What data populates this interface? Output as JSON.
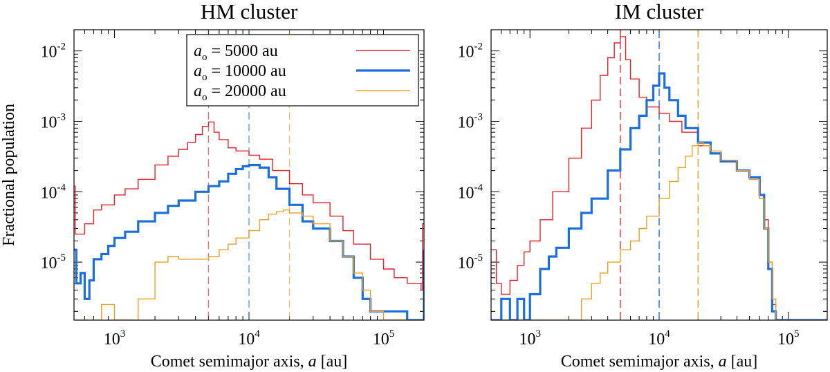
{
  "chart_data": [
    {
      "type": "line",
      "title": "HM cluster",
      "xlabel": "Comet semimajor axis, a [au]",
      "ylabel": "Fractional population",
      "xscale": "log",
      "yscale": "log",
      "xlim": [
        500,
        200000
      ],
      "ylim": [
        1.5e-06,
        0.02
      ],
      "xticks": [
        {
          "base": "10",
          "exp": "3"
        },
        {
          "base": "10",
          "exp": "4"
        },
        {
          "base": "10",
          "exp": "5"
        }
      ],
      "yticks": [
        {
          "base": "10",
          "exp": "-5"
        },
        {
          "base": "10",
          "exp": "-4"
        },
        {
          "base": "10",
          "exp": "-3"
        },
        {
          "base": "10",
          "exp": "-2"
        }
      ],
      "legend": {
        "position": "top-right",
        "entries": [
          {
            "var": "a",
            "sub": "o",
            "text": " =  5000 au"
          },
          {
            "var": "a",
            "sub": "o",
            "text": " = 10000 au"
          },
          {
            "var": "a",
            "sub": "o",
            "text": " = 20000 au"
          }
        ]
      },
      "reference_lines_x": [
        5000,
        10000,
        20000
      ],
      "series": [
        {
          "name": "ao = 5000 au",
          "color": "#e8202a",
          "points": [
            [
              500,
              0.00012
            ],
            [
              510,
              2.5e-05
            ],
            [
              600,
              3.5e-05
            ],
            [
              700,
              5.5e-05
            ],
            [
              800,
              6.5e-05
            ],
            [
              1000,
              9e-05
            ],
            [
              1200,
              0.00011
            ],
            [
              1500,
              0.00015
            ],
            [
              2000,
              0.00024
            ],
            [
              2500,
              0.00032
            ],
            [
              3000,
              0.0004
            ],
            [
              3500,
              0.0005
            ],
            [
              4000,
              0.00065
            ],
            [
              4500,
              0.00085
            ],
            [
              5000,
              0.00098
            ],
            [
              5500,
              0.0007
            ],
            [
              6000,
              0.00055
            ],
            [
              7000,
              0.00042
            ],
            [
              8000,
              0.00038
            ],
            [
              10000,
              0.00033
            ],
            [
              12000,
              0.00029
            ],
            [
              15000,
              0.0002
            ],
            [
              20000,
              0.00013
            ],
            [
              25000,
              9e-05
            ],
            [
              30000,
              7e-05
            ],
            [
              40000,
              4.5e-05
            ],
            [
              50000,
              2.8e-05
            ],
            [
              60000,
              1.8e-05
            ],
            [
              80000,
              1.1e-05
            ],
            [
              100000,
              8e-06
            ],
            [
              120000,
              6e-06
            ],
            [
              150000,
              5e-06
            ],
            [
              190000,
              4e-06
            ],
            [
              195000,
              3.5e-05
            ],
            [
              200000,
              3.5e-05
            ]
          ]
        },
        {
          "name": "ao = 10000 au",
          "color": "#1a6fe0",
          "points": [
            [
              500,
              1.5e-05
            ],
            [
              520,
              5e-06
            ],
            [
              560,
              7e-06
            ],
            [
              600,
              3e-06
            ],
            [
              650,
              5.5e-06
            ],
            [
              700,
              1.1e-05
            ],
            [
              800,
              1.3e-05
            ],
            [
              900,
              1.7e-05
            ],
            [
              1000,
              2.2e-05
            ],
            [
              1200,
              2.7e-05
            ],
            [
              1500,
              3.8e-05
            ],
            [
              2000,
              5e-05
            ],
            [
              2500,
              6.3e-05
            ],
            [
              3000,
              7.5e-05
            ],
            [
              4000,
              0.0001
            ],
            [
              5000,
              0.00012
            ],
            [
              6000,
              0.00014
            ],
            [
              7000,
              0.00018
            ],
            [
              8000,
              0.00021
            ],
            [
              9000,
              0.00023
            ],
            [
              10000,
              0.00024
            ],
            [
              12000,
              0.00022
            ],
            [
              14000,
              0.00016
            ],
            [
              16000,
              0.00011
            ],
            [
              20000,
              6.5e-05
            ],
            [
              25000,
              3.8e-05
            ],
            [
              30000,
              3e-05
            ],
            [
              40000,
              2e-05
            ],
            [
              50000,
              1.2e-05
            ],
            [
              60000,
              6e-06
            ],
            [
              70000,
              3e-06
            ],
            [
              80000,
              2e-06
            ],
            [
              100000,
              2e-06
            ],
            [
              150000,
              1.5e-06
            ],
            [
              200000,
              1.5e-05
            ]
          ]
        },
        {
          "name": "ao = 20000 au",
          "color": "#f0a020",
          "points": [
            [
              500,
              1.5e-06
            ],
            [
              700,
              1.5e-06
            ],
            [
              800,
              2.5e-06
            ],
            [
              1000,
              1.5e-06
            ],
            [
              1500,
              3e-06
            ],
            [
              2000,
              1e-05
            ],
            [
              2500,
              1.2e-05
            ],
            [
              3000,
              1.1e-05
            ],
            [
              4000,
              1.1e-05
            ],
            [
              5000,
              1.2e-05
            ],
            [
              6000,
              1.5e-05
            ],
            [
              7000,
              1.8e-05
            ],
            [
              8000,
              2.2e-05
            ],
            [
              10000,
              2.8e-05
            ],
            [
              12000,
              4e-05
            ],
            [
              14000,
              4.8e-05
            ],
            [
              16000,
              5.2e-05
            ],
            [
              18000,
              5.5e-05
            ],
            [
              20000,
              5e-05
            ],
            [
              25000,
              4.5e-05
            ],
            [
              30000,
              3.5e-05
            ],
            [
              40000,
              2e-05
            ],
            [
              50000,
              1.2e-05
            ],
            [
              60000,
              7e-06
            ],
            [
              70000,
              4e-06
            ],
            [
              80000,
              2e-06
            ],
            [
              100000,
              1.5e-06
            ],
            [
              200000,
              1.5e-06
            ]
          ]
        }
      ]
    },
    {
      "type": "line",
      "title": "IM cluster",
      "xlabel": "Comet semimajor axis, a [au]",
      "ylabel": "",
      "xscale": "log",
      "yscale": "log",
      "xlim": [
        500,
        200000
      ],
      "ylim": [
        1.5e-06,
        0.02
      ],
      "xticks": [
        {
          "base": "10",
          "exp": "3"
        },
        {
          "base": "10",
          "exp": "4"
        },
        {
          "base": "10",
          "exp": "5"
        }
      ],
      "yticks": [
        {
          "base": "10",
          "exp": "-5"
        },
        {
          "base": "10",
          "exp": "-4"
        },
        {
          "base": "10",
          "exp": "-3"
        },
        {
          "base": "10",
          "exp": "-2"
        }
      ],
      "reference_lines_x": [
        5000,
        10000,
        20000
      ],
      "series": [
        {
          "name": "ao = 5000 au",
          "color": "#e8202a",
          "points": [
            [
              500,
              1.5e-05
            ],
            [
              550,
              5e-06
            ],
            [
              600,
              3.5e-06
            ],
            [
              700,
              5.5e-06
            ],
            [
              800,
              9e-06
            ],
            [
              900,
              1.4e-05
            ],
            [
              1000,
              2e-05
            ],
            [
              1200,
              4e-05
            ],
            [
              1500,
              0.0001
            ],
            [
              2000,
              0.0003
            ],
            [
              2500,
              0.0008
            ],
            [
              3000,
              0.002
            ],
            [
              3500,
              0.0045
            ],
            [
              4000,
              0.008
            ],
            [
              4500,
              0.013
            ],
            [
              5000,
              0.016
            ],
            [
              5500,
              0.0075
            ],
            [
              6000,
              0.004
            ],
            [
              7000,
              0.0022
            ],
            [
              8000,
              0.0016
            ],
            [
              10000,
              0.0013
            ],
            [
              12000,
              0.001
            ],
            [
              15000,
              0.0007
            ],
            [
              20000,
              0.00045
            ],
            [
              25000,
              0.00035
            ],
            [
              30000,
              0.00028
            ],
            [
              40000,
              0.0002
            ],
            [
              50000,
              0.00015
            ],
            [
              60000,
              8e-05
            ],
            [
              65000,
              4e-05
            ],
            [
              70000,
              1e-05
            ],
            [
              75000,
              2.5e-06
            ],
            [
              80000,
              1.5e-06
            ],
            [
              200000,
              1.5e-06
            ]
          ]
        },
        {
          "name": "ao = 10000 au",
          "color": "#1a6fe0",
          "points": [
            [
              500,
              1.5e-06
            ],
            [
              600,
              3e-06
            ],
            [
              700,
              1.5e-06
            ],
            [
              800,
              3e-06
            ],
            [
              900,
              1.5e-06
            ],
            [
              1000,
              3.5e-06
            ],
            [
              1200,
              8e-06
            ],
            [
              1400,
              1.2e-05
            ],
            [
              1600,
              1.6e-05
            ],
            [
              2000,
              3e-05
            ],
            [
              2500,
              5e-05
            ],
            [
              3000,
              8e-05
            ],
            [
              4000,
              0.0002
            ],
            [
              5000,
              0.0004
            ],
            [
              6000,
              0.0008
            ],
            [
              7000,
              0.0012
            ],
            [
              8000,
              0.002
            ],
            [
              9000,
              0.0032
            ],
            [
              10000,
              0.0048
            ],
            [
              11000,
              0.003
            ],
            [
              12000,
              0.002
            ],
            [
              14000,
              0.0012
            ],
            [
              16000,
              0.0008
            ],
            [
              20000,
              0.0005
            ],
            [
              25000,
              0.00035
            ],
            [
              30000,
              0.00027
            ],
            [
              40000,
              0.0002
            ],
            [
              50000,
              0.00016
            ],
            [
              60000,
              9e-05
            ],
            [
              65000,
              3e-05
            ],
            [
              70000,
              8e-06
            ],
            [
              75000,
              2e-06
            ],
            [
              80000,
              1.5e-06
            ],
            [
              200000,
              1.5e-06
            ]
          ]
        },
        {
          "name": "ao = 20000 au",
          "color": "#f0a020",
          "points": [
            [
              500,
              1.5e-06
            ],
            [
              2000,
              1.5e-06
            ],
            [
              2500,
              3e-06
            ],
            [
              3000,
              5e-06
            ],
            [
              3500,
              7e-06
            ],
            [
              4000,
              1e-05
            ],
            [
              5000,
              1.5e-05
            ],
            [
              6000,
              2e-05
            ],
            [
              7000,
              3e-05
            ],
            [
              8000,
              4.5e-05
            ],
            [
              10000,
              8e-05
            ],
            [
              12000,
              0.00014
            ],
            [
              14000,
              0.00022
            ],
            [
              16000,
              0.00032
            ],
            [
              18000,
              0.00045
            ],
            [
              20000,
              0.0005
            ],
            [
              22000,
              0.00045
            ],
            [
              25000,
              0.00038
            ],
            [
              30000,
              0.00028
            ],
            [
              40000,
              0.0002
            ],
            [
              50000,
              0.00015
            ],
            [
              60000,
              8e-05
            ],
            [
              65000,
              3e-05
            ],
            [
              70000,
              1e-05
            ],
            [
              75000,
              3e-06
            ],
            [
              80000,
              1.5e-06
            ],
            [
              200000,
              1.5e-06
            ]
          ]
        }
      ]
    }
  ]
}
